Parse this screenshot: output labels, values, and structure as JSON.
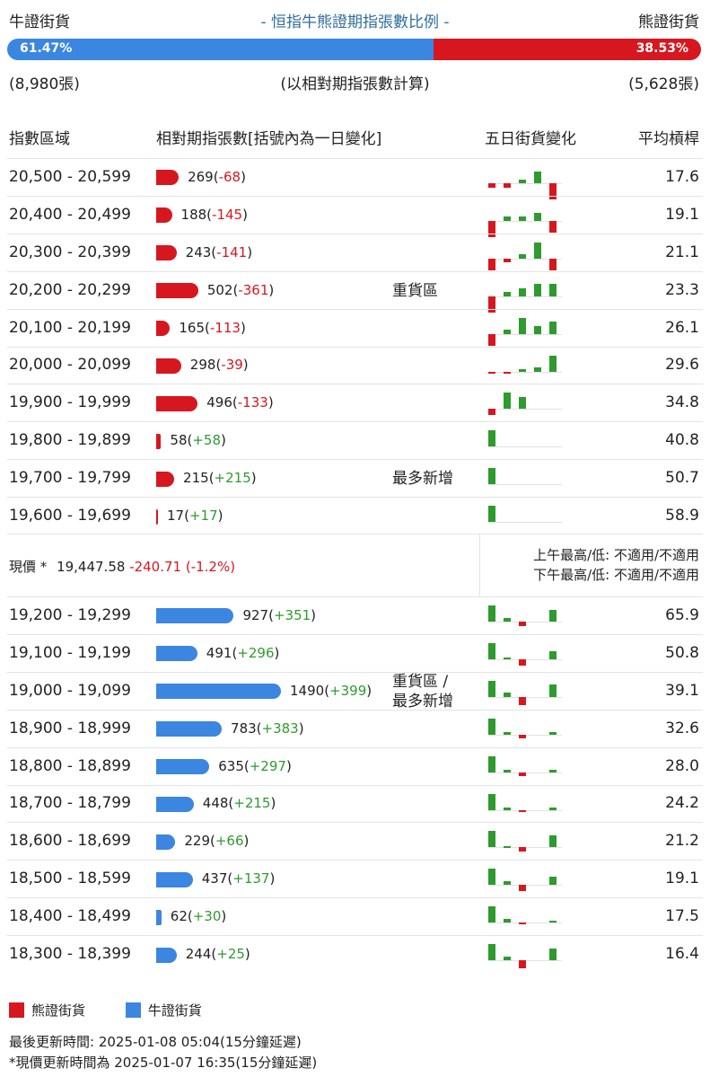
{
  "header": {
    "bull_label": "牛證街貨",
    "title": "- 恒指牛熊證期指張數比例 -",
    "bear_label": "熊證街貨",
    "bull_pct_text": "61.47%",
    "bear_pct_text": "38.53%",
    "bull_count": "(8,980張)",
    "basis_note": "(以相對期指張數計算)",
    "bear_count": "(5,628張)"
  },
  "columns": {
    "range": "指數區域",
    "contracts": "相對期指張數[括號內為一日變化]",
    "five_day": "五日街貨變化",
    "avg_leverage": "平均槓桿"
  },
  "colors": {
    "bear": "#d7171f",
    "bull": "#3b86e0",
    "positive": "#2e9b2e",
    "negative": "#d7171f"
  },
  "current_price": {
    "label": "現價 *",
    "value": "19,447.58",
    "change": "-240.71 (-1.2%)",
    "am_high_low": "上午最高/低: 不適用/不適用",
    "pm_high_low": "下午最高/低: 不適用/不適用"
  },
  "legend": {
    "bear": "熊證街貨",
    "bull": "牛證街貨"
  },
  "footer": {
    "last_update": "最後更新時間: 2025-01-08 05:04(15分鐘延遲)",
    "price_update": "*現價更新時間為 2025-01-07 16:35(15分鐘延遲)"
  },
  "chart_data": {
    "type": "bar",
    "ratio": {
      "bull_pct": 61.47,
      "bear_pct": 38.53,
      "bull_contracts": 8980,
      "bear_contracts": 5628
    },
    "bear_rows": [
      {
        "range": "20,500 - 20,599",
        "value": 269,
        "change": -68,
        "avg": "17.6",
        "zone": "",
        "five_day": [
          -1,
          -1,
          1,
          3,
          -4
        ]
      },
      {
        "range": "20,400 - 20,499",
        "value": 188,
        "change": -145,
        "avg": "19.1",
        "zone": "",
        "five_day": [
          -4,
          1,
          1,
          2,
          -3
        ]
      },
      {
        "range": "20,300 - 20,399",
        "value": 243,
        "change": -141,
        "avg": "21.1",
        "zone": "",
        "five_day": [
          -3,
          -1,
          1,
          4,
          -3
        ]
      },
      {
        "range": "20,200 - 20,299",
        "value": 502,
        "change": -361,
        "avg": "23.3",
        "zone": "重貨區",
        "five_day": [
          -4,
          1,
          2,
          3,
          3
        ]
      },
      {
        "range": "20,100 - 20,199",
        "value": 165,
        "change": -113,
        "avg": "26.1",
        "zone": "",
        "five_day": [
          -3,
          1,
          4,
          2,
          3
        ]
      },
      {
        "range": "20,000 - 20,099",
        "value": 298,
        "change": -39,
        "avg": "29.6",
        "zone": "",
        "five_day": [
          -0.5,
          -0.5,
          0.5,
          1,
          4
        ]
      },
      {
        "range": "19,900 - 19,999",
        "value": 496,
        "change": -133,
        "avg": "34.8",
        "zone": "",
        "five_day": [
          -1.5,
          4,
          3,
          0,
          0
        ]
      },
      {
        "range": "19,800 - 19,899",
        "value": 58,
        "change": 58,
        "avg": "40.8",
        "zone": "",
        "five_day": [
          4,
          0,
          0,
          0,
          0
        ]
      },
      {
        "range": "19,700 - 19,799",
        "value": 215,
        "change": 215,
        "avg": "50.7",
        "zone": "最多新增",
        "five_day": [
          4,
          0,
          0,
          0,
          0
        ]
      },
      {
        "range": "19,600 - 19,699",
        "value": 17,
        "change": 17,
        "avg": "58.9",
        "zone": "",
        "five_day": [
          4,
          0,
          0,
          0,
          0
        ]
      }
    ],
    "bull_rows": [
      {
        "range": "19,200 - 19,299",
        "value": 927,
        "change": 351,
        "avg": "65.9",
        "zone": "",
        "five_day": [
          4,
          1,
          -1,
          0,
          3
        ]
      },
      {
        "range": "19,100 - 19,199",
        "value": 491,
        "change": 296,
        "avg": "50.8",
        "zone": "",
        "five_day": [
          4,
          0.5,
          -1.5,
          0,
          2
        ]
      },
      {
        "range": "19,000 - 19,099",
        "value": 1490,
        "change": 399,
        "avg": "39.1",
        "zone": "重貨區 /\n最多新增",
        "five_day": [
          4,
          1,
          -2,
          0,
          3
        ]
      },
      {
        "range": "18,900 - 18,999",
        "value": 783,
        "change": 383,
        "avg": "32.6",
        "zone": "",
        "five_day": [
          4,
          0.5,
          -1,
          0,
          0.5
        ]
      },
      {
        "range": "18,800 - 18,899",
        "value": 635,
        "change": 297,
        "avg": "28.0",
        "zone": "",
        "five_day": [
          4,
          0.5,
          -1,
          0,
          0.5
        ]
      },
      {
        "range": "18,700 - 18,799",
        "value": 448,
        "change": 215,
        "avg": "24.2",
        "zone": "",
        "five_day": [
          4,
          0.5,
          -0.5,
          0,
          0.5
        ]
      },
      {
        "range": "18,600 - 18,699",
        "value": 229,
        "change": 66,
        "avg": "21.2",
        "zone": "",
        "five_day": [
          4,
          0.3,
          -1,
          0,
          3
        ]
      },
      {
        "range": "18,500 - 18,599",
        "value": 437,
        "change": 137,
        "avg": "19.1",
        "zone": "",
        "five_day": [
          4,
          1,
          -1.5,
          0,
          2
        ]
      },
      {
        "range": "18,400 - 18,499",
        "value": 62,
        "change": 30,
        "avg": "17.5",
        "zone": "",
        "five_day": [
          4,
          1,
          -0.5,
          0,
          0.5
        ]
      },
      {
        "range": "18,300 - 18,399",
        "value": 244,
        "change": 25,
        "avg": "16.4",
        "zone": "",
        "five_day": [
          4,
          1,
          -2,
          0,
          3
        ]
      }
    ]
  }
}
